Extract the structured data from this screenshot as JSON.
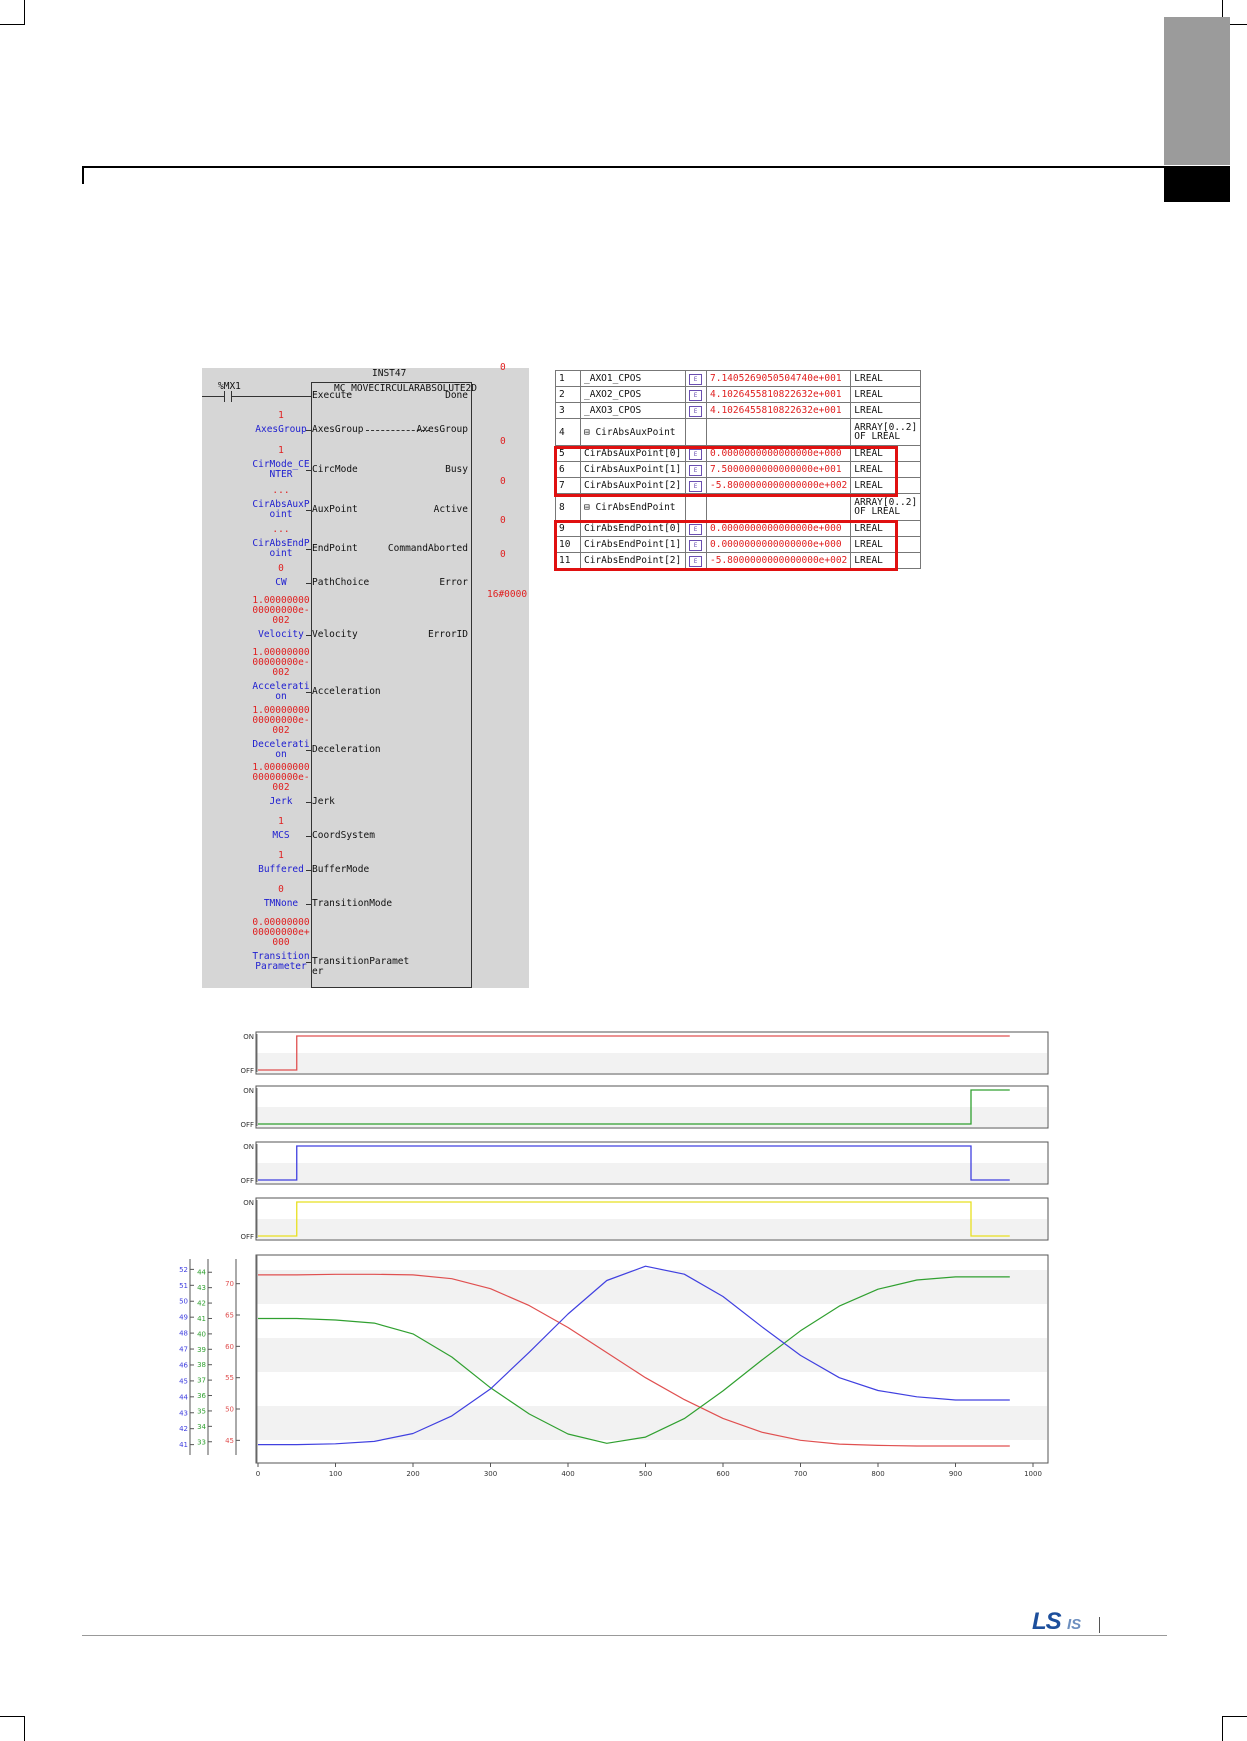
{
  "fb": {
    "instance": "INST47",
    "type": "MC_MOVECIRCULARABSOLUTE2D",
    "contact": "%MX1",
    "inputs": [
      {
        "pin": "Execute",
        "label": "",
        "const": ""
      },
      {
        "pin": "AxesGroup",
        "label": "AxesGroup",
        "const": "1"
      },
      {
        "pin": "CircMode",
        "label": "CirMode_CE\nNTER",
        "const": "1"
      },
      {
        "pin": "AuxPoint",
        "label": "CirAbsAuxP\noint",
        "const": "..."
      },
      {
        "pin": "EndPoint",
        "label": "CirAbsEndP\noint",
        "const": "..."
      },
      {
        "pin": "PathChoice",
        "label": "CW",
        "const": "0"
      },
      {
        "pin": "Velocity",
        "label": "Velocity",
        "const": "1.00000000\n00000000e-\n002"
      },
      {
        "pin": "Acceleration",
        "label": "Accelerati\non",
        "const": "1.00000000\n00000000e-\n002"
      },
      {
        "pin": "Deceleration",
        "label": "Decelerati\non",
        "const": "1.00000000\n00000000e-\n002"
      },
      {
        "pin": "Jerk",
        "label": "Jerk",
        "const": "1.00000000\n00000000e-\n002"
      },
      {
        "pin": "CoordSystem",
        "label": "MCS",
        "const": "1"
      },
      {
        "pin": "BufferMode",
        "label": "Buffered",
        "const": "1"
      },
      {
        "pin": "TransitionMode",
        "label": "TMNone",
        "const": "0"
      },
      {
        "pin": "TransitionParamet\ner",
        "label": "Transition\nParameter",
        "const": "0.00000000\n00000000e+\n000"
      }
    ],
    "outputs": [
      {
        "pin": "Done",
        "value": "0"
      },
      {
        "pin": "AxesGroup",
        "value": ""
      },
      {
        "pin": "Busy",
        "value": "0"
      },
      {
        "pin": "Active",
        "value": "0"
      },
      {
        "pin": "CommandAborted",
        "value": "0"
      },
      {
        "pin": "Error",
        "value": "0"
      },
      {
        "pin": "ErrorID",
        "value": "16#0000"
      }
    ]
  },
  "var_table": {
    "tag_icon": "edit-icon",
    "rows": [
      {
        "no": "1",
        "name": "_AXO1_CPOS",
        "value": "7.1405269050504740e+001",
        "type": "LREAL",
        "tag": true
      },
      {
        "no": "2",
        "name": "_AXO2_CPOS",
        "value": "4.1026455810822632e+001",
        "type": "LREAL",
        "tag": true
      },
      {
        "no": "3",
        "name": "_AXO3_CPOS",
        "value": "4.1026455810822632e+001",
        "type": "LREAL",
        "tag": true
      },
      {
        "no": "4",
        "name": "⊟ CirAbsAuxPoint",
        "value": "",
        "type": "ARRAY[0..2]\nOF LREAL",
        "tag": false
      },
      {
        "no": "5",
        "name": "CirAbsAuxPoint[0]",
        "value": "0.0000000000000000e+000",
        "type": "LREAL",
        "tag": true
      },
      {
        "no": "6",
        "name": "CirAbsAuxPoint[1]",
        "value": "7.5000000000000000e+001",
        "type": "LREAL",
        "tag": true
      },
      {
        "no": "7",
        "name": "CirAbsAuxPoint[2]",
        "value": "-5.8000000000000000e+002",
        "type": "LREAL",
        "tag": true
      },
      {
        "no": "8",
        "name": "⊟ CirAbsEndPoint",
        "value": "",
        "type": "ARRAY[0..2]\nOF LREAL",
        "tag": false
      },
      {
        "no": "9",
        "name": "CirAbsEndPoint[0]",
        "value": "0.0000000000000000e+000",
        "type": "LREAL",
        "tag": true
      },
      {
        "no": "10",
        "name": "CirAbsEndPoint[1]",
        "value": "0.0000000000000000e+000",
        "type": "LREAL",
        "tag": true
      },
      {
        "no": "11",
        "name": "CirAbsEndPoint[2]",
        "value": "-5.8000000000000000e+002",
        "type": "LREAL",
        "tag": true
      }
    ]
  },
  "chart_data": [
    {
      "type": "line",
      "panel": "digital",
      "ylabels": [
        "ON",
        "OFF"
      ],
      "color": "#e05050",
      "series": [
        {
          "x": [
            0,
            50,
            50,
            970
          ],
          "values": [
            0,
            0,
            1,
            1
          ]
        }
      ],
      "xlim": [
        0,
        1000
      ]
    },
    {
      "type": "line",
      "panel": "digital",
      "ylabels": [
        "ON",
        "OFF"
      ],
      "color": "#30a030",
      "series": [
        {
          "x": [
            0,
            920,
            920,
            970
          ],
          "values": [
            0,
            0,
            1,
            1
          ]
        }
      ],
      "xlim": [
        0,
        1000
      ]
    },
    {
      "type": "line",
      "panel": "digital",
      "ylabels": [
        "ON",
        "OFF"
      ],
      "color": "#4040e0",
      "series": [
        {
          "x": [
            0,
            50,
            50,
            920,
            920,
            970
          ],
          "values": [
            0,
            0,
            1,
            1,
            0,
            0
          ]
        }
      ],
      "xlim": [
        0,
        1000
      ]
    },
    {
      "type": "line",
      "panel": "digital",
      "ylabels": [
        "ON",
        "OFF"
      ],
      "color": "#e8e020",
      "series": [
        {
          "x": [
            0,
            50,
            50,
            920,
            920,
            970
          ],
          "values": [
            0,
            0,
            1,
            1,
            0,
            0
          ]
        }
      ],
      "xlim": [
        0,
        1000
      ]
    },
    {
      "type": "line",
      "panel": "analog",
      "xticks": [
        "0",
        "100",
        "200",
        "300",
        "400",
        "500",
        "600",
        "700",
        "800",
        "900",
        "1000"
      ],
      "xlim": [
        0,
        1000
      ],
      "axes": [
        {
          "color": "#4040e0",
          "ylim": [
            40.6,
            52.4
          ],
          "ticks": [
            "41",
            "42",
            "43",
            "44",
            "45",
            "46",
            "47",
            "48",
            "49",
            "50",
            "51",
            "52"
          ]
        },
        {
          "color": "#30a030",
          "ylim": [
            32.4,
            44.6
          ],
          "ticks": [
            "33",
            "34",
            "35",
            "36",
            "37",
            "38",
            "39",
            "40",
            "41",
            "42",
            "43",
            "44"
          ]
        },
        {
          "color": "#e05050",
          "ylim": [
            43.3,
            73.3
          ],
          "ticks": [
            "45",
            "50",
            "55",
            "60",
            "65",
            "70"
          ]
        }
      ],
      "series": [
        {
          "color": "#e05050",
          "axis": 2,
          "x": [
            0,
            50,
            100,
            150,
            200,
            250,
            300,
            350,
            400,
            450,
            500,
            550,
            600,
            650,
            700,
            750,
            800,
            850,
            900,
            970
          ],
          "values": [
            71.4,
            71.4,
            71.5,
            71.5,
            71.4,
            70.8,
            69.2,
            66.5,
            63.0,
            59.0,
            55.0,
            51.5,
            48.5,
            46.3,
            45.0,
            44.4,
            44.2,
            44.1,
            44.1,
            44.1
          ]
        },
        {
          "color": "#30a030",
          "axis": 1,
          "x": [
            0,
            50,
            100,
            150,
            200,
            250,
            300,
            350,
            400,
            450,
            500,
            550,
            600,
            650,
            700,
            750,
            800,
            850,
            900,
            970
          ],
          "values": [
            41.0,
            41.0,
            40.9,
            40.7,
            40.0,
            38.5,
            36.5,
            34.8,
            33.5,
            32.9,
            33.3,
            34.5,
            36.3,
            38.3,
            40.2,
            41.8,
            42.9,
            43.5,
            43.7,
            43.7
          ]
        },
        {
          "color": "#4040e0",
          "axis": 0,
          "x": [
            0,
            50,
            100,
            150,
            200,
            250,
            300,
            350,
            400,
            450,
            500,
            550,
            600,
            650,
            700,
            750,
            800,
            850,
            900,
            970
          ],
          "values": [
            41.0,
            41.0,
            41.05,
            41.2,
            41.7,
            42.8,
            44.5,
            46.8,
            49.2,
            51.3,
            52.2,
            51.7,
            50.3,
            48.4,
            46.6,
            45.2,
            44.4,
            44.0,
            43.8,
            43.8
          ]
        }
      ]
    }
  ],
  "logo": {
    "ls": "LS",
    "is": "IS"
  }
}
